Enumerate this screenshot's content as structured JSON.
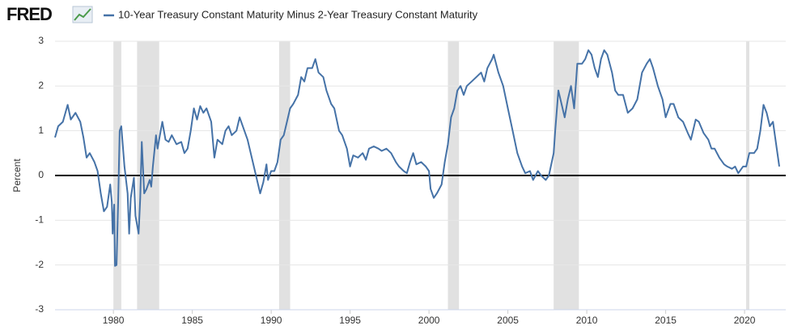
{
  "chart_data": {
    "type": "line",
    "logo": "FRED",
    "y_label": "Percent",
    "xlim": [
      1976.3,
      2022.2
    ],
    "ylim": [
      -3,
      3
    ],
    "xticks": [
      1980,
      1985,
      1990,
      1995,
      2000,
      2005,
      2010,
      2015,
      2020
    ],
    "yticks": [
      -3,
      -2,
      -1,
      0,
      1,
      2,
      3
    ],
    "grid": true,
    "recession_color": "#e1e1e1",
    "recessions": [
      [
        1980.0,
        1980.5
      ],
      [
        1981.5,
        1982.9
      ],
      [
        1990.5,
        1991.2
      ],
      [
        2001.2,
        2001.9
      ],
      [
        2007.9,
        2009.5
      ],
      [
        2020.1,
        2020.3
      ]
    ],
    "x": [
      1976.3,
      1976.5,
      1976.8,
      1977.1,
      1977.3,
      1977.6,
      1977.9,
      1978.1,
      1978.3,
      1978.5,
      1978.8,
      1979.0,
      1979.2,
      1979.4,
      1979.6,
      1979.8,
      1979.9,
      1979.95,
      1980.05,
      1980.1,
      1980.2,
      1980.3,
      1980.4,
      1980.5,
      1980.7,
      1980.9,
      1981.0,
      1981.1,
      1981.3,
      1981.4,
      1981.6,
      1981.7,
      1981.8,
      1981.95,
      1982.1,
      1982.3,
      1982.4,
      1982.5,
      1982.7,
      1982.8,
      1983.0,
      1983.1,
      1983.3,
      1983.5,
      1983.7,
      1984.0,
      1984.3,
      1984.5,
      1984.7,
      1984.9,
      1985.1,
      1985.3,
      1985.5,
      1985.7,
      1985.9,
      1986.2,
      1986.4,
      1986.6,
      1986.9,
      1987.1,
      1987.3,
      1987.5,
      1987.8,
      1988.0,
      1988.2,
      1988.5,
      1988.7,
      1988.9,
      1989.1,
      1989.3,
      1989.5,
      1989.7,
      1989.8,
      1990.0,
      1990.2,
      1990.4,
      1990.6,
      1990.8,
      1991.0,
      1991.2,
      1991.4,
      1991.7,
      1991.9,
      1992.1,
      1992.3,
      1992.6,
      1992.8,
      1993.0,
      1993.3,
      1993.5,
      1993.8,
      1994.0,
      1994.3,
      1994.5,
      1994.8,
      1995.0,
      1995.2,
      1995.5,
      1995.8,
      1996.0,
      1996.2,
      1996.5,
      1996.8,
      1997.0,
      1997.3,
      1997.6,
      1997.9,
      1998.1,
      1998.4,
      1998.6,
      1998.8,
      1999.0,
      1999.2,
      1999.5,
      1999.8,
      2000.0,
      2000.1,
      2000.3,
      2000.5,
      2000.8,
      2001.0,
      2001.2,
      2001.4,
      2001.6,
      2001.8,
      2002.0,
      2002.2,
      2002.4,
      2002.7,
      2003.0,
      2003.3,
      2003.5,
      2003.7,
      2004.0,
      2004.1,
      2004.4,
      2004.7,
      2005.0,
      2005.3,
      2005.6,
      2005.9,
      2006.1,
      2006.4,
      2006.6,
      2006.9,
      2007.1,
      2007.4,
      2007.6,
      2007.9,
      2008.0,
      2008.2,
      2008.4,
      2008.6,
      2008.8,
      2009.0,
      2009.2,
      2009.4,
      2009.7,
      2009.9,
      2010.1,
      2010.3,
      2010.5,
      2010.7,
      2010.9,
      2011.1,
      2011.3,
      2011.6,
      2011.8,
      2012.0,
      2012.3,
      2012.6,
      2012.9,
      2013.2,
      2013.5,
      2013.8,
      2014.0,
      2014.2,
      2014.5,
      2014.8,
      2015.0,
      2015.3,
      2015.5,
      2015.8,
      2016.1,
      2016.4,
      2016.6,
      2016.9,
      2017.1,
      2017.4,
      2017.7,
      2017.9,
      2018.1,
      2018.4,
      2018.7,
      2018.9,
      2019.2,
      2019.4,
      2019.6,
      2019.9,
      2020.1,
      2020.3,
      2020.6,
      2020.8,
      2021.0,
      2021.2,
      2021.4,
      2021.6,
      2021.8,
      2022.0,
      2022.2
    ],
    "series": [
      {
        "name": "10-Year Treasury Constant Maturity Minus 2-Year Treasury Constant Maturity",
        "color": "#4572a7",
        "values": [
          0.85,
          1.1,
          1.2,
          1.58,
          1.25,
          1.4,
          1.2,
          0.85,
          0.4,
          0.5,
          0.3,
          0.1,
          -0.4,
          -0.8,
          -0.7,
          -0.2,
          -0.6,
          -1.3,
          -0.65,
          -2.02,
          -2.0,
          -0.6,
          1.0,
          1.1,
          0.2,
          -0.4,
          -1.3,
          -0.5,
          -0.05,
          -0.9,
          -1.3,
          -0.5,
          0.75,
          -0.4,
          -0.3,
          -0.1,
          -0.25,
          0.2,
          0.9,
          0.6,
          1.0,
          1.2,
          0.8,
          0.75,
          0.9,
          0.7,
          0.75,
          0.5,
          0.6,
          1.0,
          1.5,
          1.25,
          1.55,
          1.4,
          1.5,
          1.2,
          0.4,
          0.8,
          0.7,
          1.0,
          1.1,
          0.9,
          1.0,
          1.3,
          1.1,
          0.8,
          0.5,
          0.2,
          -0.1,
          -0.4,
          -0.15,
          0.25,
          -0.1,
          0.1,
          0.1,
          0.3,
          0.8,
          0.9,
          1.2,
          1.5,
          1.6,
          1.8,
          2.2,
          2.1,
          2.4,
          2.4,
          2.6,
          2.3,
          2.2,
          1.9,
          1.6,
          1.5,
          1.0,
          0.9,
          0.6,
          0.2,
          0.45,
          0.4,
          0.5,
          0.35,
          0.6,
          0.65,
          0.6,
          0.55,
          0.6,
          0.5,
          0.3,
          0.2,
          0.1,
          0.05,
          0.3,
          0.5,
          0.25,
          0.3,
          0.2,
          0.1,
          -0.3,
          -0.5,
          -0.4,
          -0.2,
          0.3,
          0.7,
          1.3,
          1.5,
          1.9,
          2.0,
          1.8,
          2.0,
          2.1,
          2.2,
          2.3,
          2.1,
          2.4,
          2.6,
          2.7,
          2.3,
          2.0,
          1.5,
          1.0,
          0.5,
          0.2,
          0.05,
          0.1,
          -0.1,
          0.1,
          0.0,
          -0.1,
          0.0,
          0.5,
          1.0,
          1.9,
          1.6,
          1.3,
          1.7,
          2.0,
          1.5,
          2.5,
          2.5,
          2.6,
          2.8,
          2.7,
          2.4,
          2.2,
          2.6,
          2.8,
          2.7,
          2.3,
          1.9,
          1.8,
          1.8,
          1.4,
          1.5,
          1.7,
          2.3,
          2.5,
          2.6,
          2.4,
          2.0,
          1.7,
          1.3,
          1.6,
          1.6,
          1.3,
          1.2,
          0.95,
          0.8,
          1.25,
          1.2,
          0.95,
          0.8,
          0.6,
          0.6,
          0.4,
          0.25,
          0.2,
          0.15,
          0.2,
          0.05,
          0.2,
          0.2,
          0.5,
          0.5,
          0.6,
          1.0,
          1.58,
          1.4,
          1.1,
          1.2,
          0.7,
          0.2
        ]
      }
    ]
  }
}
